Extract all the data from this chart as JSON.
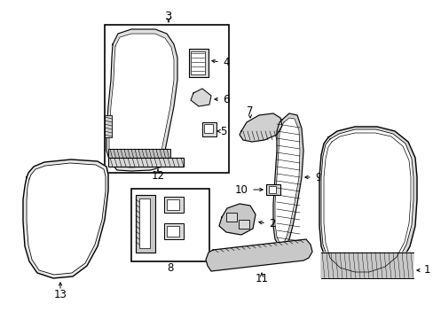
{
  "background_color": "#ffffff",
  "line_color": "#000000",
  "fig_width": 4.89,
  "fig_height": 3.6,
  "dpi": 100,
  "label_fontsize": 8.5,
  "gray_fill": "#d8d8d8",
  "white_fill": "#ffffff",
  "light_gray": "#eeeeee"
}
